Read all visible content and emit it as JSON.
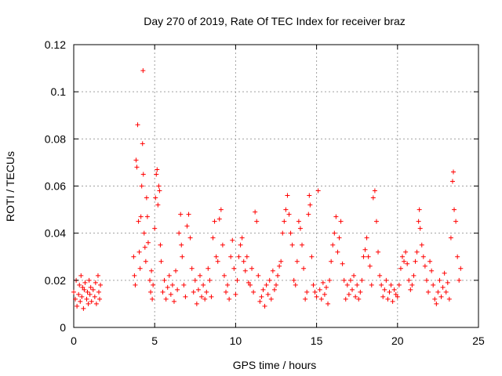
{
  "chart_data": {
    "type": "scatter",
    "title": "Day 270 of 2019, Rate Of TEC Index for receiver braz",
    "xlabel": "GPS time / hours",
    "ylabel": "ROTI / TECUs",
    "xlim": [
      0,
      25
    ],
    "ylim": [
      0,
      0.12
    ],
    "xticks": [
      0,
      5,
      10,
      15,
      20,
      25
    ],
    "xtick_labels": [
      "0",
      "5",
      "10",
      "15",
      "20",
      "25"
    ],
    "yticks": [
      0,
      0.02,
      0.04,
      0.06,
      0.08,
      0.1,
      0.12
    ],
    "ytick_labels": [
      "0",
      "0.02",
      "0.04",
      "0.06",
      "0.08",
      "0.1",
      "0.12"
    ],
    "grid": true,
    "marker": "+",
    "color": "#ff0000",
    "series": [
      {
        "points": [
          [
            0.0,
            0.015
          ],
          [
            0.1,
            0.012
          ],
          [
            0.15,
            0.02
          ],
          [
            0.2,
            0.009
          ],
          [
            0.3,
            0.014
          ],
          [
            0.35,
            0.018
          ],
          [
            0.4,
            0.011
          ],
          [
            0.45,
            0.022
          ],
          [
            0.5,
            0.013
          ],
          [
            0.55,
            0.017
          ],
          [
            0.6,
            0.008
          ],
          [
            0.65,
            0.016
          ],
          [
            0.7,
            0.019
          ],
          [
            0.8,
            0.012
          ],
          [
            0.85,
            0.015
          ],
          [
            0.9,
            0.01
          ],
          [
            0.95,
            0.02
          ],
          [
            1.0,
            0.014
          ],
          [
            1.05,
            0.017
          ],
          [
            1.1,
            0.011
          ],
          [
            1.2,
            0.016
          ],
          [
            1.3,
            0.013
          ],
          [
            1.35,
            0.019
          ],
          [
            1.4,
            0.01
          ],
          [
            1.5,
            0.022
          ],
          [
            1.55,
            0.015
          ],
          [
            1.6,
            0.012
          ],
          [
            1.65,
            0.018
          ],
          [
            3.7,
            0.03
          ],
          [
            3.75,
            0.022
          ],
          [
            3.8,
            0.018
          ],
          [
            3.85,
            0.071
          ],
          [
            3.9,
            0.068
          ],
          [
            3.95,
            0.086
          ],
          [
            4.0,
            0.045
          ],
          [
            4.05,
            0.032
          ],
          [
            4.1,
            0.025
          ],
          [
            4.15,
            0.047
          ],
          [
            4.2,
            0.06
          ],
          [
            4.25,
            0.078
          ],
          [
            4.28,
            0.109
          ],
          [
            4.3,
            0.065
          ],
          [
            4.35,
            0.04
          ],
          [
            4.4,
            0.034
          ],
          [
            4.45,
            0.028
          ],
          [
            4.5,
            0.055
          ],
          [
            4.55,
            0.047
          ],
          [
            4.6,
            0.036
          ],
          [
            4.7,
            0.02
          ],
          [
            4.75,
            0.015
          ],
          [
            4.8,
            0.024
          ],
          [
            4.85,
            0.012
          ],
          [
            4.9,
            0.018
          ],
          [
            5.0,
            0.042
          ],
          [
            5.05,
            0.055
          ],
          [
            5.1,
            0.065
          ],
          [
            5.15,
            0.067
          ],
          [
            5.2,
            0.052
          ],
          [
            5.25,
            0.06
          ],
          [
            5.3,
            0.058
          ],
          [
            5.35,
            0.035
          ],
          [
            5.4,
            0.028
          ],
          [
            5.5,
            0.015
          ],
          [
            5.6,
            0.02
          ],
          [
            5.7,
            0.012
          ],
          [
            5.8,
            0.017
          ],
          [
            5.9,
            0.022
          ],
          [
            6.0,
            0.014
          ],
          [
            6.1,
            0.018
          ],
          [
            6.2,
            0.011
          ],
          [
            6.3,
            0.024
          ],
          [
            6.4,
            0.016
          ],
          [
            6.5,
            0.04
          ],
          [
            6.6,
            0.048
          ],
          [
            6.65,
            0.035
          ],
          [
            6.7,
            0.03
          ],
          [
            6.8,
            0.018
          ],
          [
            6.9,
            0.013
          ],
          [
            7.0,
            0.043
          ],
          [
            7.1,
            0.048
          ],
          [
            7.2,
            0.038
          ],
          [
            7.3,
            0.025
          ],
          [
            7.4,
            0.015
          ],
          [
            7.5,
            0.02
          ],
          [
            7.6,
            0.01
          ],
          [
            7.7,
            0.016
          ],
          [
            7.8,
            0.022
          ],
          [
            7.9,
            0.013
          ],
          [
            8.0,
            0.018
          ],
          [
            8.1,
            0.012
          ],
          [
            8.2,
            0.015
          ],
          [
            8.3,
            0.025
          ],
          [
            8.4,
            0.02
          ],
          [
            8.5,
            0.013
          ],
          [
            8.6,
            0.038
          ],
          [
            8.7,
            0.045
          ],
          [
            8.8,
            0.03
          ],
          [
            8.9,
            0.028
          ],
          [
            9.0,
            0.046
          ],
          [
            9.1,
            0.05
          ],
          [
            9.2,
            0.035
          ],
          [
            9.3,
            0.022
          ],
          [
            9.4,
            0.015
          ],
          [
            9.5,
            0.018
          ],
          [
            9.6,
            0.012
          ],
          [
            9.7,
            0.03
          ],
          [
            9.8,
            0.037
          ],
          [
            9.9,
            0.025
          ],
          [
            10.0,
            0.014
          ],
          [
            10.1,
            0.02
          ],
          [
            10.2,
            0.03
          ],
          [
            10.3,
            0.035
          ],
          [
            10.4,
            0.038
          ],
          [
            10.5,
            0.028
          ],
          [
            10.6,
            0.024
          ],
          [
            10.7,
            0.03
          ],
          [
            10.8,
            0.019
          ],
          [
            10.9,
            0.018
          ],
          [
            11.0,
            0.025
          ],
          [
            11.1,
            0.015
          ],
          [
            11.2,
            0.049
          ],
          [
            11.3,
            0.045
          ],
          [
            11.4,
            0.022
          ],
          [
            11.5,
            0.011
          ],
          [
            11.6,
            0.013
          ],
          [
            11.7,
            0.016
          ],
          [
            11.8,
            0.009
          ],
          [
            11.9,
            0.018
          ],
          [
            12.0,
            0.014
          ],
          [
            12.1,
            0.02
          ],
          [
            12.2,
            0.012
          ],
          [
            12.3,
            0.024
          ],
          [
            12.4,
            0.016
          ],
          [
            12.5,
            0.018
          ],
          [
            12.6,
            0.022
          ],
          [
            12.7,
            0.026
          ],
          [
            12.8,
            0.028
          ],
          [
            12.9,
            0.04
          ],
          [
            13.0,
            0.045
          ],
          [
            13.1,
            0.05
          ],
          [
            13.2,
            0.056
          ],
          [
            13.3,
            0.048
          ],
          [
            13.4,
            0.04
          ],
          [
            13.5,
            0.035
          ],
          [
            13.6,
            0.02
          ],
          [
            13.7,
            0.018
          ],
          [
            13.8,
            0.028
          ],
          [
            13.9,
            0.045
          ],
          [
            14.0,
            0.042
          ],
          [
            14.1,
            0.035
          ],
          [
            14.2,
            0.025
          ],
          [
            14.3,
            0.012
          ],
          [
            14.4,
            0.015
          ],
          [
            14.5,
            0.048
          ],
          [
            14.55,
            0.056
          ],
          [
            14.6,
            0.052
          ],
          [
            14.7,
            0.03
          ],
          [
            14.8,
            0.018
          ],
          [
            14.9,
            0.015
          ],
          [
            15.0,
            0.013
          ],
          [
            15.1,
            0.058
          ],
          [
            15.2,
            0.016
          ],
          [
            15.3,
            0.012
          ],
          [
            15.4,
            0.019
          ],
          [
            15.5,
            0.014
          ],
          [
            15.6,
            0.017
          ],
          [
            15.7,
            0.01
          ],
          [
            15.8,
            0.02
          ],
          [
            15.9,
            0.028
          ],
          [
            16.0,
            0.035
          ],
          [
            16.1,
            0.04
          ],
          [
            16.2,
            0.047
          ],
          [
            16.3,
            0.032
          ],
          [
            16.4,
            0.038
          ],
          [
            16.5,
            0.045
          ],
          [
            16.6,
            0.027
          ],
          [
            16.7,
            0.02
          ],
          [
            16.8,
            0.012
          ],
          [
            16.9,
            0.018
          ],
          [
            17.0,
            0.014
          ],
          [
            17.1,
            0.02
          ],
          [
            17.2,
            0.016
          ],
          [
            17.3,
            0.022
          ],
          [
            17.4,
            0.013
          ],
          [
            17.5,
            0.018
          ],
          [
            17.6,
            0.012
          ],
          [
            17.7,
            0.015
          ],
          [
            17.8,
            0.02
          ],
          [
            17.9,
            0.03
          ],
          [
            18.0,
            0.033
          ],
          [
            18.1,
            0.038
          ],
          [
            18.2,
            0.03
          ],
          [
            18.3,
            0.026
          ],
          [
            18.4,
            0.018
          ],
          [
            18.5,
            0.055
          ],
          [
            18.6,
            0.058
          ],
          [
            18.7,
            0.045
          ],
          [
            18.8,
            0.032
          ],
          [
            18.9,
            0.022
          ],
          [
            19.0,
            0.018
          ],
          [
            19.1,
            0.013
          ],
          [
            19.2,
            0.016
          ],
          [
            19.3,
            0.02
          ],
          [
            19.4,
            0.012
          ],
          [
            19.5,
            0.015
          ],
          [
            19.6,
            0.018
          ],
          [
            19.7,
            0.011
          ],
          [
            19.8,
            0.016
          ],
          [
            19.9,
            0.014
          ],
          [
            20.0,
            0.013
          ],
          [
            20.1,
            0.018
          ],
          [
            20.2,
            0.025
          ],
          [
            20.3,
            0.03
          ],
          [
            20.4,
            0.028
          ],
          [
            20.5,
            0.032
          ],
          [
            20.6,
            0.027
          ],
          [
            20.7,
            0.02
          ],
          [
            20.8,
            0.016
          ],
          [
            20.9,
            0.018
          ],
          [
            21.0,
            0.022
          ],
          [
            21.1,
            0.028
          ],
          [
            21.2,
            0.032
          ],
          [
            21.3,
            0.045
          ],
          [
            21.35,
            0.05
          ],
          [
            21.4,
            0.042
          ],
          [
            21.5,
            0.035
          ],
          [
            21.6,
            0.03
          ],
          [
            21.7,
            0.026
          ],
          [
            21.8,
            0.02
          ],
          [
            21.9,
            0.015
          ],
          [
            22.0,
            0.028
          ],
          [
            22.1,
            0.024
          ],
          [
            22.2,
            0.018
          ],
          [
            22.3,
            0.012
          ],
          [
            22.4,
            0.01
          ],
          [
            22.5,
            0.015
          ],
          [
            22.6,
            0.02
          ],
          [
            22.7,
            0.013
          ],
          [
            22.8,
            0.017
          ],
          [
            22.9,
            0.023
          ],
          [
            23.0,
            0.015
          ],
          [
            23.1,
            0.019
          ],
          [
            23.2,
            0.012
          ],
          [
            23.3,
            0.038
          ],
          [
            23.4,
            0.062
          ],
          [
            23.45,
            0.066
          ],
          [
            23.5,
            0.05
          ],
          [
            23.6,
            0.045
          ],
          [
            23.7,
            0.03
          ],
          [
            23.8,
            0.02
          ],
          [
            23.9,
            0.025
          ]
        ]
      }
    ]
  }
}
